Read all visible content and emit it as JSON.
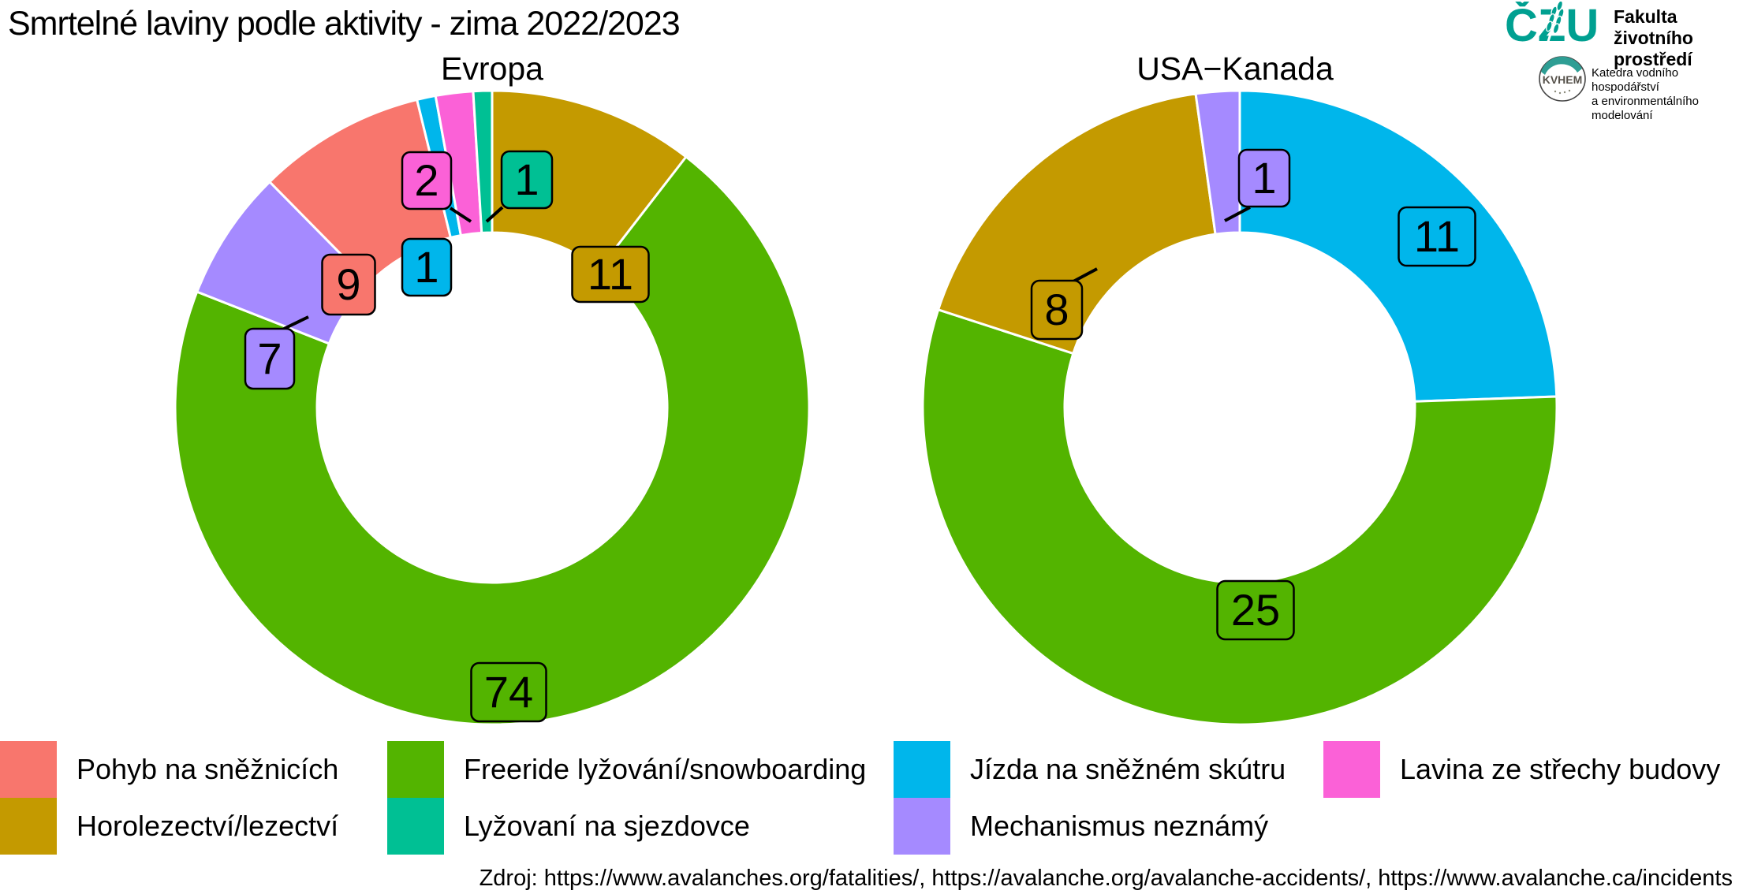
{
  "title": "Smrtelné laviny podle aktivity - zima 2022/2023",
  "branding": {
    "university_logo": "ČZU",
    "faculty_line1": "Fakulta životního",
    "faculty_line2": "prostředí",
    "department_logo": "KVHEM",
    "department_line1": "Katedra vodního hospodářství",
    "department_line2": "a environmentálního modelování",
    "teal": "#00A091",
    "gray": "#8E8E8E"
  },
  "chart_data": [
    {
      "type": "pie",
      "style": "donut",
      "title": "Evropa",
      "total": 105,
      "start_angle_deg": 0,
      "direction": "clockwise",
      "slices": [
        {
          "label": "Horolezectví/lezectví",
          "value": 11,
          "color": "#C49A00"
        },
        {
          "label": "Freeride lyžování/snowboarding",
          "value": 74,
          "color": "#53B400"
        },
        {
          "label": "Mechanismus neznámý",
          "value": 7,
          "color": "#A58AFF"
        },
        {
          "label": "Pohyb na sněžnicích",
          "value": 9,
          "color": "#F8766D"
        },
        {
          "label": "Jízda na sněžném skútru",
          "value": 1,
          "color": "#00B6EB"
        },
        {
          "label": "Lavina ze střechy budovy",
          "value": 2,
          "color": "#FB61D7"
        },
        {
          "label": "Lyžovaní na sjezdovce",
          "value": 1,
          "color": "#00C094"
        }
      ]
    },
    {
      "type": "pie",
      "style": "donut",
      "title": "USA−Kanada",
      "total": 45,
      "start_angle_deg": 0,
      "direction": "clockwise",
      "slices": [
        {
          "label": "Jízda na sněžném skútru",
          "value": 11,
          "color": "#00B6EB"
        },
        {
          "label": "Freeride lyžování/snowboarding",
          "value": 25,
          "color": "#53B400"
        },
        {
          "label": "Horolezectví/lezectví",
          "value": 8,
          "color": "#C49A00"
        },
        {
          "label": "Mechanismus neznámý",
          "value": 1,
          "color": "#A58AFF"
        }
      ]
    }
  ],
  "legend": {
    "items": [
      {
        "label": "Pohyb na sněžnicích",
        "color": "#F8766D"
      },
      {
        "label": "Freeride lyžování/snowboarding",
        "color": "#53B400"
      },
      {
        "label": "Jízda na sněžném skútru",
        "color": "#00B6EB"
      },
      {
        "label": "Lavina ze střechy budovy",
        "color": "#FB61D7"
      },
      {
        "label": "Horolezectví/lezectví",
        "color": "#C49A00"
      },
      {
        "label": "Lyžovaní na sjezdovce",
        "color": "#00C094"
      },
      {
        "label": "Mechanismus neznámý",
        "color": "#A58AFF"
      }
    ]
  },
  "source": "Zdroj: https://www.avalanches.org/fatalities/, https://avalanche.org/avalanche-accidents/, https://www.avalanche.ca/incidents"
}
